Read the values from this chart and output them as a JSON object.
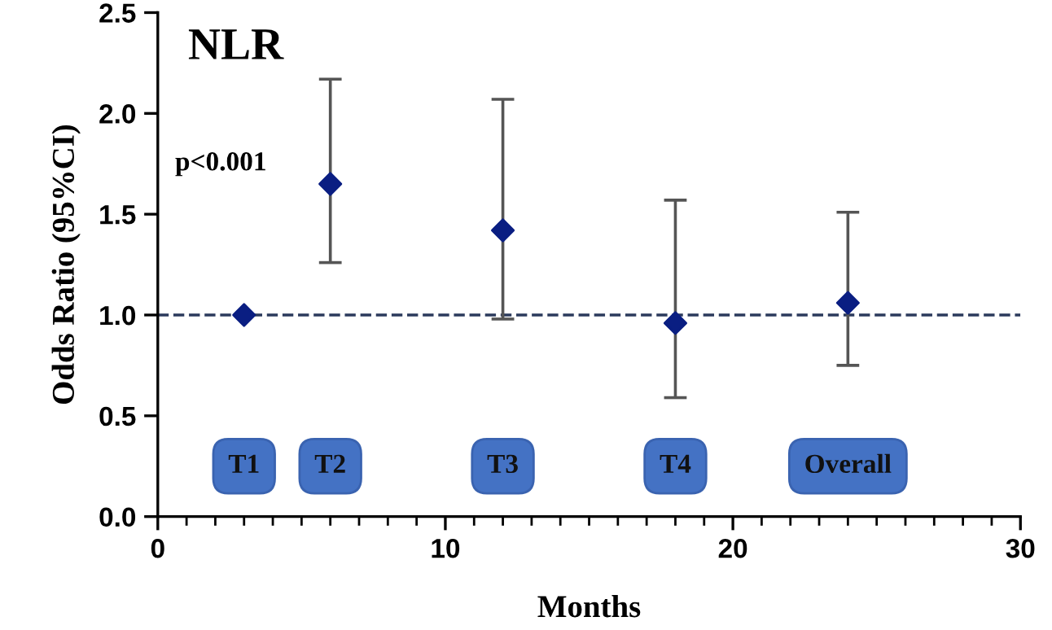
{
  "chart_data": {
    "type": "scatter",
    "title": "NLR",
    "xlabel": "Months",
    "ylabel": "Odds Ratio (95%CI)",
    "x": [
      3,
      6,
      12,
      18,
      24
    ],
    "series": [
      {
        "color": "#0a1e82",
        "values": [
          1.0,
          1.65,
          1.42,
          0.96,
          1.06
        ],
        "errors": [
          null,
          [
            1.26,
            2.17
          ],
          [
            0.98,
            2.07
          ],
          [
            0.59,
            1.57
          ],
          [
            0.75,
            1.51
          ]
        ]
      }
    ],
    "marker": "diamond",
    "xlim": [
      0,
      30
    ],
    "xticks": [
      0,
      10,
      20,
      30
    ],
    "ylim": [
      0,
      2.5
    ],
    "yticks": [
      {
        "value": 0,
        "label": "0.0"
      },
      0.5,
      {
        "value": 1,
        "label": "1.0"
      },
      1.5,
      {
        "value": 2,
        "label": "2.0"
      },
      2.5
    ],
    "ref_lines": [
      {
        "axis": "y",
        "value": 1.0,
        "color": "#2b3a5c",
        "line_style": "dashed"
      }
    ],
    "annotations": [
      "p<0.001",
      "T1",
      "T2",
      "T3",
      "T4",
      "Overall"
    ],
    "grid": false,
    "legend": false
  }
}
